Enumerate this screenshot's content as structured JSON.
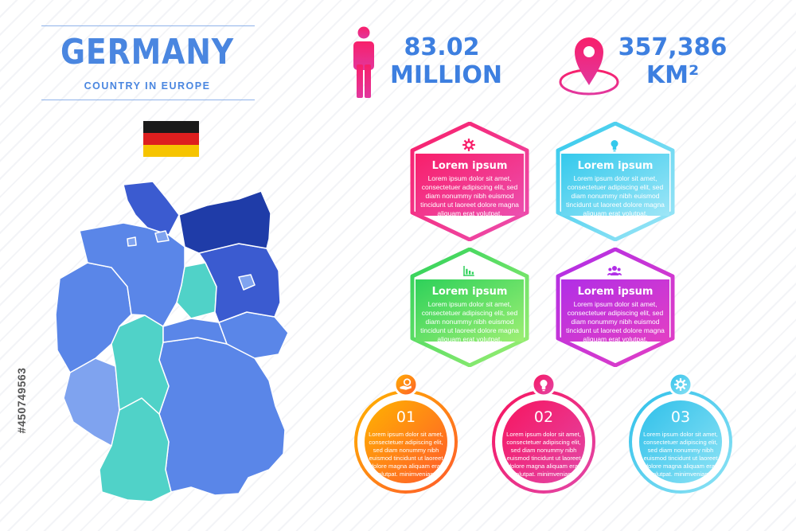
{
  "header": {
    "title": "GERMANY",
    "subtitle": "COUNTRY IN EUROPE"
  },
  "flag": {
    "colors": [
      "#1a1a1a",
      "#dd1f1f",
      "#f6c400"
    ]
  },
  "stats": {
    "population": {
      "line1": "83.02",
      "line2": "MILLION",
      "icon": "person-icon"
    },
    "area": {
      "line1": "357,386",
      "line2": "KM²",
      "icon": "location-pin-icon"
    }
  },
  "cards": [
    {
      "title": "Lorem ipsum",
      "icon": "gear-icon",
      "lines": [
        "Lorem ipsum dolor sit amet,",
        "consectetuer adipiscing elit, sed",
        "diam nonummy nibh euismod",
        "tincidunt ut laoreet dolore magna",
        "aliquam erat volutpat."
      ],
      "color_start": "#f81f6a",
      "color_end": "#ec4fb0"
    },
    {
      "title": "Lorem ipsum",
      "icon": "lightbulb-icon",
      "lines": [
        "Lorem ipsum dolor sit amet,",
        "consectetuer adipiscing elit, sed",
        "diam nonummy nibh euismod",
        "tincidunt ut laoreet dolore magna",
        "aliquam erat volutpat."
      ],
      "color_start": "#34c9ec",
      "color_end": "#9ee6f7"
    },
    {
      "title": "Lorem ipsum",
      "icon": "bar-chart-icon",
      "lines": [
        "Lorem ipsum dolor sit amet,",
        "consectetuer adipiscing elit, sed",
        "diam nonummy nibh euismod",
        "tincidunt ut laoreet dolore magna",
        "aliquam erat volutpat."
      ],
      "color_start": "#2ed15a",
      "color_end": "#9eef74"
    },
    {
      "title": "Lorem ipsum",
      "icon": "team-icon",
      "lines": [
        "Lorem ipsum dolor sit amet,",
        "consectetuer adipiscing elit, sed",
        "diam nonummy nibh euismod",
        "tincidunt ut laoreet dolore magna",
        "aliquam erat volutpat."
      ],
      "color_start": "#b12ee6",
      "color_end": "#e33fc4"
    }
  ],
  "steps": [
    {
      "number": "01",
      "icon": "hand-coin-icon",
      "lines": [
        "Lorem ipsum dolor sit amet,",
        "consectetuer adipiscing elit,",
        "sed diam nonummy nibh",
        "euismod tincidunt ut laoreet",
        "dolore magna aliquam erat",
        "volutpat. minimveniam."
      ],
      "color_start": "#ffb300",
      "color_end": "#ff5a2c"
    },
    {
      "number": "02",
      "icon": "lightbulb-icon",
      "lines": [
        "Lorem ipsum dolor sit amet,",
        "consectetuer adipiscing elit,",
        "sed diam nonummy nibh",
        "euismod tincidunt ut laoreet",
        "dolore magna aliquam erat",
        "volutpat. minimveniam."
      ],
      "color_start": "#f7155f",
      "color_end": "#e248a9"
    },
    {
      "number": "03",
      "icon": "gear-icon",
      "lines": [
        "Lorem ipsum dolor sit amet,",
        "consectetuer adipiscing elit,",
        "sed diam nonummy nibh",
        "euismod tincidunt ut laoreet",
        "dolore magna aliquam erat",
        "volutpat. minimveniam."
      ],
      "color_start": "#2fc0ea",
      "color_end": "#8fe3f5"
    }
  ],
  "watermark": {
    "stock_id": "#450749563"
  },
  "map": {
    "colors": [
      "#5a86e8",
      "#3b5bd0",
      "#1f3ca8",
      "#50d2c8",
      "#7fa3ef"
    ]
  }
}
